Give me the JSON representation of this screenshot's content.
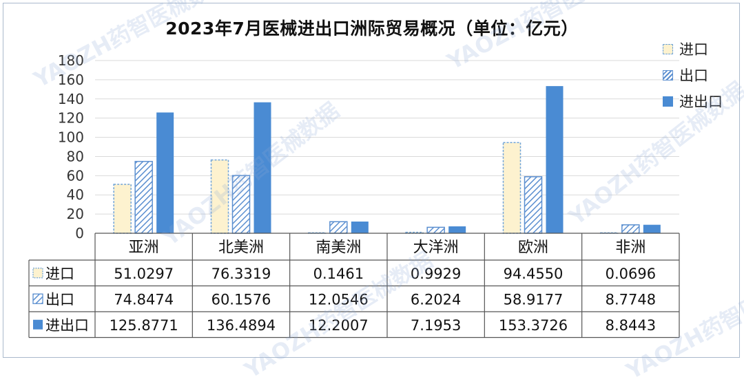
{
  "chart_data": {
    "type": "bar",
    "title": "2023年7月医械进出口洲际贸易概况（单位：亿元）",
    "categories": [
      "亚洲",
      "北美洲",
      "南美洲",
      "大洋洲",
      "欧洲",
      "非洲"
    ],
    "series": [
      {
        "name": "进口",
        "values": [
          51.0297,
          76.3319,
          0.1461,
          0.9929,
          94.455,
          0.0696
        ],
        "labels": [
          "51.0297",
          "76.3319",
          "0.1461",
          "0.9929",
          "94.4550",
          "0.0696"
        ]
      },
      {
        "name": "出口",
        "values": [
          74.8474,
          60.1576,
          12.0546,
          6.2024,
          58.9177,
          8.7748
        ],
        "labels": [
          "74.8474",
          "60.1576",
          "12.0546",
          "6.2024",
          "58.9177",
          "8.7748"
        ]
      },
      {
        "name": "进出口",
        "values": [
          125.8771,
          136.4894,
          12.2007,
          7.1953,
          153.3726,
          8.8443
        ],
        "labels": [
          "125.8771",
          "136.4894",
          "12.2007",
          "7.1953",
          "153.3726",
          "8.8443"
        ]
      }
    ],
    "ylim": [
      0,
      180
    ],
    "yticks": [
      0,
      20,
      40,
      60,
      80,
      100,
      120,
      140,
      160,
      180
    ],
    "grid": true,
    "legend": "top-right",
    "data_table": true
  },
  "colors": {
    "import_fill": "#fdf2cf",
    "import_border": "#6fa3d8",
    "export_stroke": "#5b8fd0",
    "total_fill": "#4a8bd3",
    "grid": "#d9d9d9",
    "table_border": "#555555"
  },
  "watermark": {
    "text": "YAOZH药智医械数据"
  }
}
